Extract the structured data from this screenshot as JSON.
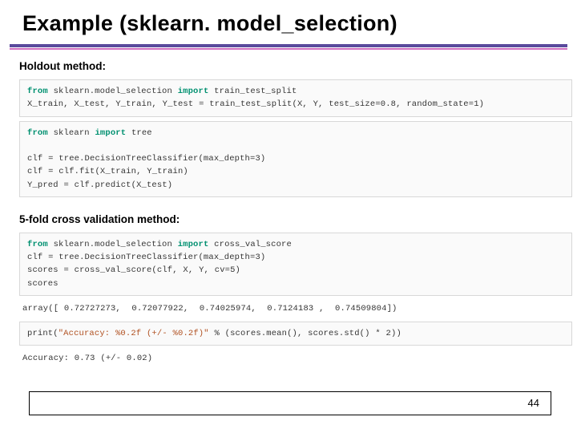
{
  "title": "Example (sklearn. model_selection)",
  "subtitle1": "Holdout method:",
  "subtitle2": "5-fold cross validation method:",
  "code1": {
    "kw_from1": "from",
    "mod1": " sklearn.model_selection ",
    "kw_import1": "import",
    "imp1": " train_test_split",
    "line2": "X_train, X_test, Y_train, Y_test = train_test_split(X, Y, test_size=0.8, random_state=1)"
  },
  "code2": {
    "kw_from2": "from",
    "mod2": " sklearn ",
    "kw_import2": "import",
    "imp2": " tree",
    "line2b": "clf = tree.DecisionTreeClassifier(max_depth=3)",
    "line3": "clf = clf.fit(X_train, Y_train)",
    "line4": "Y_pred = clf.predict(X_test)"
  },
  "code3": {
    "kw_from3": "from",
    "mod3": " sklearn.model_selection ",
    "kw_import3": "import",
    "imp3": " cross_val_score",
    "line2c": "clf = tree.DecisionTreeClassifier(max_depth=3)",
    "line3c": "scores = cross_val_score(clf, X, Y, cv=5)",
    "line4c": "scores"
  },
  "output3": "array([ 0.72727273,  0.72077922,  0.74025974,  0.7124183 ,  0.74509804])",
  "code4": {
    "pr": "print",
    "open": "(",
    "str4": "\"Accuracy: %0.2f (+/- %0.2f)\"",
    "rest4": " % (scores.mean(), scores.std() * 2))"
  },
  "output4": "Accuracy: 0.73 (+/- 0.02)",
  "page": "44"
}
